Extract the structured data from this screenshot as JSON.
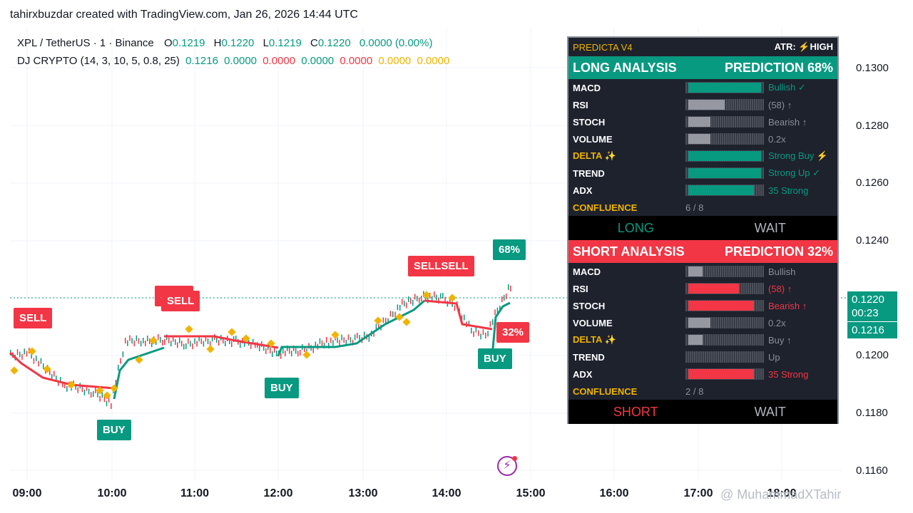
{
  "credit": "tahirxbuzdar created with TradingView.com, Jan 26, 2026 14:44 UTC",
  "symbol": {
    "name": "XPL / TetherUS · 1 · Binance",
    "o_label": "O",
    "o": "0.1219",
    "h_label": "H",
    "h": "0.1220",
    "l_label": "L",
    "l": "0.1219",
    "c_label": "C",
    "c": "0.1220",
    "change": "0.0000 (0.00%)"
  },
  "indicator": {
    "name": "DJ CRYPTO (14, 3, 10, 5, 0.8, 25)",
    "v1": "0.1216",
    "v2": "0.0000",
    "v3": "0.0000",
    "v4": "0.0000",
    "v5": "0.0000",
    "v6": "0.0000",
    "v7": "0.0000"
  },
  "price_axis": [
    "0.1300",
    "0.1280",
    "0.1260",
    "0.1240",
    "0.1200",
    "0.1180",
    "0.1160"
  ],
  "price_badge": {
    "price": "0.1220",
    "countdown": "00:23",
    "indicator_price": "0.1216"
  },
  "time_axis": [
    "09:00",
    "10:00",
    "11:00",
    "12:00",
    "13:00",
    "14:00",
    "15:00",
    "16:00",
    "17:00",
    "18:00"
  ],
  "watermark": "@ MuhammadXTahir",
  "signals": {
    "sell1": "SELL",
    "sell2": "SELL",
    "sell3": "SELL",
    "sell4": "SELLSELL",
    "buy1": "BUY",
    "buy2": "BUY",
    "buy3": "BUY",
    "long_pct": "68%",
    "short_pct": "32%"
  },
  "colors": {
    "bull": "#089981",
    "bear": "#f23645",
    "accent": "#f0b400",
    "panel_bg": "#1e222d"
  },
  "panel": {
    "title": "PREDICTA V4",
    "atr": "ATR: ⚡HIGH",
    "long": {
      "heading": "LONG ANALYSIS",
      "prediction": "PREDICTION 68%",
      "rows": [
        {
          "label": "MACD",
          "value": "Bullish ✓",
          "fill": 1.0,
          "color": "bull"
        },
        {
          "label": "RSI",
          "value": "(58) ↑",
          "fill": 0.5,
          "color": "gray"
        },
        {
          "label": "STOCH",
          "value": "Bearish ↑",
          "fill": 0.3,
          "color": "gray"
        },
        {
          "label": "VOLUME",
          "value": "0.2x",
          "fill": 0.3,
          "color": "gray"
        },
        {
          "label": "DELTA ✨",
          "value": "Strong Buy ⚡",
          "fill": 1.0,
          "color": "bull"
        },
        {
          "label": "TREND",
          "value": "Strong Up ✓",
          "fill": 1.0,
          "color": "bull"
        },
        {
          "label": "ADX",
          "value": "35 Strong",
          "fill": 0.9,
          "color": "bull"
        }
      ],
      "confluence_label": "CONFLUENCE",
      "confluence": "6 / 8",
      "action": "LONG",
      "wait": "WAIT"
    },
    "short": {
      "heading": "SHORT ANALYSIS",
      "prediction": "PREDICTION 32%",
      "rows": [
        {
          "label": "MACD",
          "value": "Bullish",
          "fill": 0.2,
          "color": "gray"
        },
        {
          "label": "RSI",
          "value": "(58) ↑",
          "fill": 0.7,
          "color": "bear"
        },
        {
          "label": "STOCH",
          "value": "Bearish ↑",
          "fill": 0.9,
          "color": "bear"
        },
        {
          "label": "VOLUME",
          "value": "0.2x",
          "fill": 0.3,
          "color": "gray"
        },
        {
          "label": "DELTA ✨",
          "value": "Buy ↑",
          "fill": 0.2,
          "color": "gray"
        },
        {
          "label": "TREND",
          "value": "Up",
          "fill": 0.0,
          "color": "gray"
        },
        {
          "label": "ADX",
          "value": "35 Strong",
          "fill": 0.9,
          "color": "bear"
        }
      ],
      "confluence_label": "CONFLUENCE",
      "confluence": "2 / 8",
      "action": "SHORT",
      "wait": "WAIT"
    }
  }
}
